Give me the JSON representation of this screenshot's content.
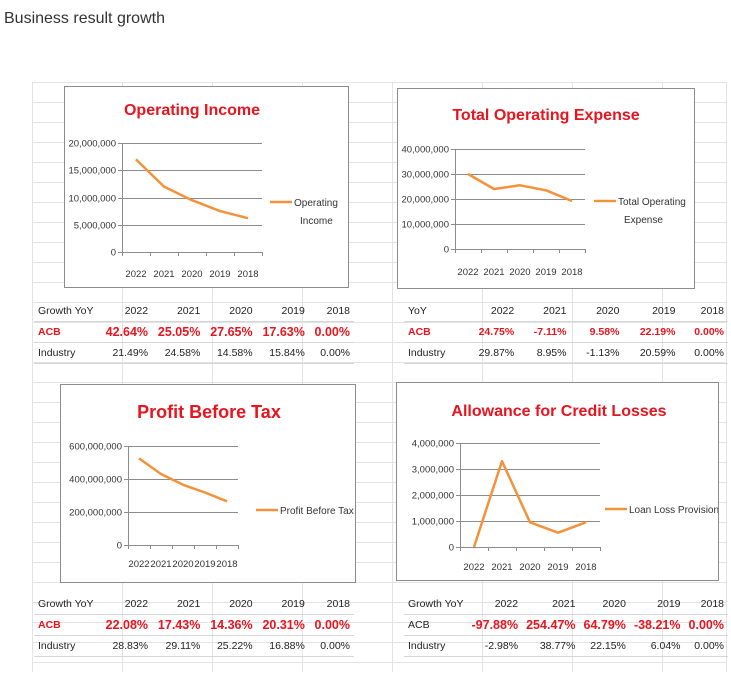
{
  "page": {
    "title": "Business result growth"
  },
  "chart_data": [
    {
      "type": "line",
      "title": "Operating Income",
      "categories": [
        "2022",
        "2021",
        "2020",
        "2019",
        "2018"
      ],
      "series": [
        {
          "name": "Operating Income",
          "values": [
            17000000,
            12000000,
            9500000,
            7500000,
            6200000
          ]
        }
      ],
      "ylim": [
        0,
        20000000
      ],
      "y_ticks": [
        0,
        5000000,
        10000000,
        15000000,
        20000000
      ],
      "y_tick_labels": [
        "0",
        "5,000,000",
        "10,000,000",
        "15,000,000",
        "20,000,000"
      ],
      "legend_lines": [
        "Operating",
        "Income"
      ],
      "legend": "right",
      "line_color": "#f4913b"
    },
    {
      "type": "line",
      "title": "Total Operating Expense",
      "categories": [
        "2022",
        "2021",
        "2020",
        "2019",
        "2018"
      ],
      "series": [
        {
          "name": "Total Operating Expense",
          "values": [
            30000000,
            24000000,
            25500000,
            23500000,
            19200000
          ]
        }
      ],
      "ylim": [
        0,
        40000000
      ],
      "y_ticks": [
        0,
        10000000,
        20000000,
        30000000,
        40000000
      ],
      "y_tick_labels": [
        "0",
        "10,000,000",
        "20,000,000",
        "30,000,000",
        "40,000,000"
      ],
      "legend_lines": [
        "Total Operating",
        "Expense"
      ],
      "legend": "right",
      "line_color": "#f4913b"
    },
    {
      "type": "line",
      "title": "Profit Before Tax",
      "categories": [
        "2022",
        "2021",
        "2020",
        "2019",
        "2018"
      ],
      "series": [
        {
          "name": "Profit Before Tax",
          "values": [
            525000000,
            430000000,
            365000000,
            318000000,
            265000000
          ]
        }
      ],
      "ylim": [
        0,
        600000000
      ],
      "y_ticks": [
        0,
        200000000,
        400000000,
        600000000
      ],
      "y_tick_labels": [
        "0",
        "200,000,000",
        "400,000,000",
        "600,000,000"
      ],
      "legend_lines": [
        "Profit Before Tax"
      ],
      "legend": "right",
      "line_color": "#f4913b"
    },
    {
      "type": "line",
      "title": "Allowance for Credit Losses",
      "categories": [
        "2022",
        "2021",
        "2020",
        "2019",
        "2018"
      ],
      "series": [
        {
          "name": "Loan Loss Provision",
          "values": [
            0,
            3300000,
            950000,
            550000,
            950000
          ]
        }
      ],
      "ylim": [
        0,
        4000000
      ],
      "y_ticks": [
        0,
        1000000,
        2000000,
        3000000,
        4000000
      ],
      "y_tick_labels": [
        "0",
        "1,000,000",
        "2,000,000",
        "3,000,000",
        "4,000,000"
      ],
      "legend_lines": [
        "Loan Loss Provision"
      ],
      "legend": "right",
      "line_color": "#f4913b"
    }
  ],
  "tables": [
    {
      "header": [
        "Growth YoY",
        "2022",
        "2021",
        "2020",
        "2019",
        "2018"
      ],
      "rows": [
        [
          "ACB",
          "42.64%",
          "25.05%",
          "27.65%",
          "17.63%",
          "0.00%"
        ],
        [
          "Industry",
          "21.49%",
          "24.58%",
          "14.58%",
          "15.84%",
          "0.00%"
        ]
      ]
    },
    {
      "header": [
        "YoY",
        "2022",
        "2021",
        "2020",
        "2019",
        "2018"
      ],
      "rows": [
        [
          "ACB",
          "24.75%",
          "-7.11%",
          "9.58%",
          "22.19%",
          "0.00%"
        ],
        [
          "Industry",
          "29.87%",
          "8.95%",
          "-1.13%",
          "20.59%",
          "0.00%"
        ]
      ]
    },
    {
      "header": [
        "Growth YoY",
        "2022",
        "2021",
        "2020",
        "2019",
        "2018"
      ],
      "rows": [
        [
          "ACB",
          "22.08%",
          "17.43%",
          "14.36%",
          "20.31%",
          "0.00%"
        ],
        [
          "Industry",
          "28.83%",
          "29.11%",
          "25.22%",
          "16.88%",
          "0.00%"
        ]
      ]
    },
    {
      "header": [
        "Growth YoY",
        "2022",
        "2021",
        "2020",
        "2019",
        "2018"
      ],
      "rows": [
        [
          "ACB",
          "-97.88%",
          "254.47%",
          "64.79%",
          "-38.21%",
          "0.00%"
        ],
        [
          "Industry",
          "-2.98%",
          "38.77%",
          "22.15%",
          "6.04%",
          "0.00%"
        ]
      ]
    }
  ]
}
